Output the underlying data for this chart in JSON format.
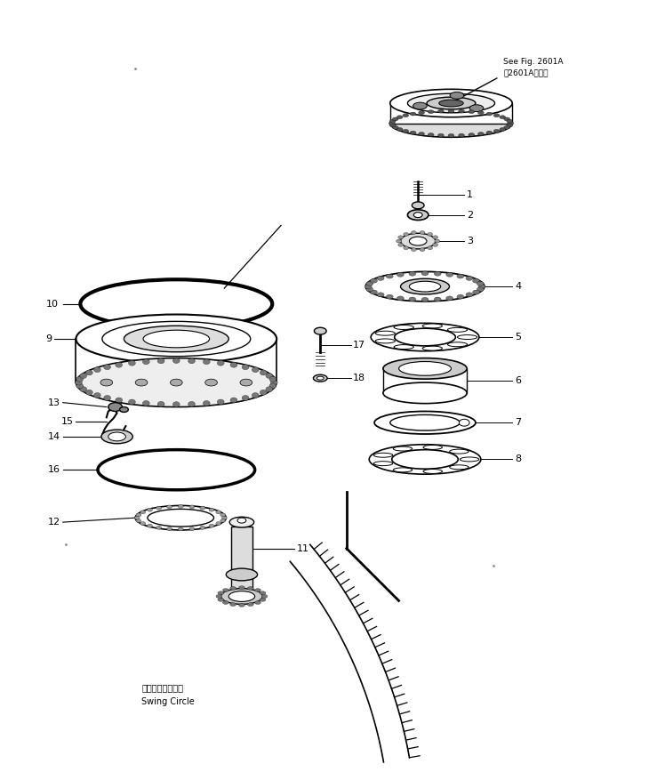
{
  "bg_color": "#ffffff",
  "lc": "#000000",
  "fig_w": 7.48,
  "fig_h": 8.68,
  "dpi": 100,
  "ann_jp": "第2601A図参照",
  "ann_en": "See Fig. 2601A",
  "swing_jp": "スイングサークル",
  "swing_en": "Swing Circle",
  "parts_right": [
    "1",
    "2",
    "3",
    "4",
    "5",
    "6",
    "7",
    "8"
  ],
  "parts_left": [
    "9",
    "10",
    "11",
    "12",
    "13",
    "14",
    "15",
    "16",
    "17",
    "18"
  ]
}
